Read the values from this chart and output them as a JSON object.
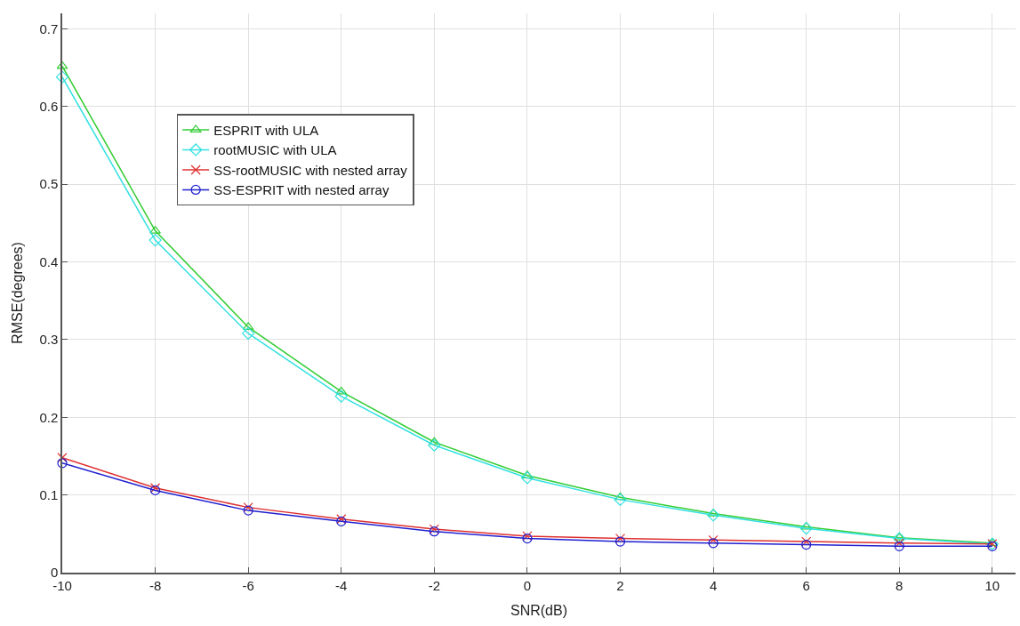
{
  "chart_data": {
    "type": "line",
    "xlabel": "SNR(dB)",
    "ylabel": "RMSE(degrees)",
    "x": [
      -10,
      -8,
      -6,
      -4,
      -2,
      0,
      2,
      4,
      6,
      8,
      10
    ],
    "series": [
      {
        "name": "ESPRIT with ULA",
        "color": "#33cc33",
        "marker": "triangle",
        "values": [
          0.652,
          0.44,
          0.316,
          0.233,
          0.168,
          0.125,
          0.097,
          0.076,
          0.059,
          0.045,
          0.038
        ]
      },
      {
        "name": "rootMUSIC with ULA",
        "color": "#33e0e0",
        "marker": "diamond",
        "values": [
          0.638,
          0.428,
          0.308,
          0.227,
          0.164,
          0.122,
          0.094,
          0.074,
          0.057,
          0.044,
          0.037
        ]
      },
      {
        "name": "SS-rootMUSIC with nested array",
        "color": "#e03030",
        "marker": "cross",
        "values": [
          0.148,
          0.109,
          0.084,
          0.069,
          0.056,
          0.047,
          0.044,
          0.042,
          0.04,
          0.038,
          0.037
        ]
      },
      {
        "name": "SS-ESPRIT with nested array",
        "color": "#2020d0",
        "marker": "circle",
        "values": [
          0.141,
          0.106,
          0.08,
          0.066,
          0.053,
          0.044,
          0.04,
          0.038,
          0.036,
          0.034,
          0.034
        ]
      }
    ],
    "xlim": [
      -10,
      10.5
    ],
    "xticks": [
      -10,
      -8,
      -6,
      -4,
      -2,
      0,
      2,
      4,
      6,
      8,
      10
    ],
    "ylim": [
      0,
      0.72
    ],
    "yticks": [
      0,
      0.1,
      0.2,
      0.3,
      0.4,
      0.5,
      0.6,
      0.7
    ],
    "grid": true,
    "legend": "top left",
    "line_style": "solid"
  }
}
